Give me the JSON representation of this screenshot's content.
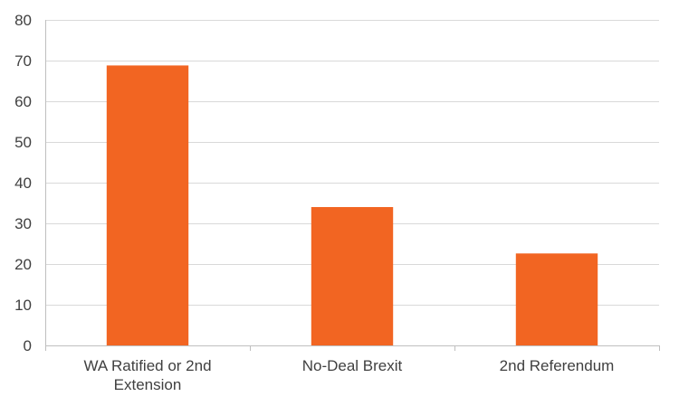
{
  "chart_data": {
    "type": "bar",
    "title": "",
    "xlabel": "",
    "ylabel": "",
    "categories": [
      "WA Ratified or 2nd Extension",
      "No-Deal Brexit",
      "2nd Referendum"
    ],
    "category_lines": [
      [
        "WA Ratified or 2nd",
        "Extension"
      ],
      [
        "No-Deal Brexit"
      ],
      [
        "2nd Referendum"
      ]
    ],
    "values": [
      68.8,
      34,
      22.6
    ],
    "ylim": [
      0,
      80
    ],
    "yticks": [
      "0",
      "10",
      "20",
      "30",
      "40",
      "50",
      "60",
      "70",
      "80"
    ],
    "grid": true,
    "legend": "none",
    "bar_color": "#f26522"
  }
}
